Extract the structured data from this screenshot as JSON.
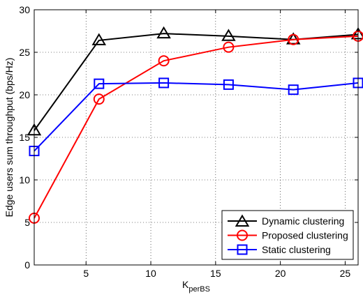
{
  "chart_data": {
    "type": "line",
    "xlabel_main": "K",
    "xlabel_sub": "perBS",
    "ylabel": "Edge users sum throughput (bps/Hz)",
    "xlim": [
      1,
      26
    ],
    "ylim": [
      0,
      30
    ],
    "xticks": [
      5,
      10,
      15,
      20,
      25
    ],
    "yticks": [
      0,
      5,
      10,
      15,
      20,
      25,
      30
    ],
    "grid": true,
    "legend_position": "bottom-right",
    "series": [
      {
        "name": "Dynamic clustering",
        "color": "#000000",
        "marker": "triangle",
        "x": [
          1,
          6,
          11,
          16,
          21,
          26
        ],
        "y": [
          15.8,
          26.4,
          27.2,
          26.9,
          26.5,
          27.1
        ]
      },
      {
        "name": "Proposed clustering",
        "color": "#ff0000",
        "marker": "circle",
        "x": [
          1,
          6,
          11,
          16,
          21,
          26
        ],
        "y": [
          5.5,
          19.5,
          24.0,
          25.6,
          26.5,
          26.9
        ]
      },
      {
        "name": "Static clustering",
        "color": "#0000ff",
        "marker": "square",
        "x": [
          1,
          6,
          11,
          16,
          21,
          26
        ],
        "y": [
          13.4,
          21.3,
          21.4,
          21.2,
          20.6,
          21.4
        ]
      }
    ]
  }
}
